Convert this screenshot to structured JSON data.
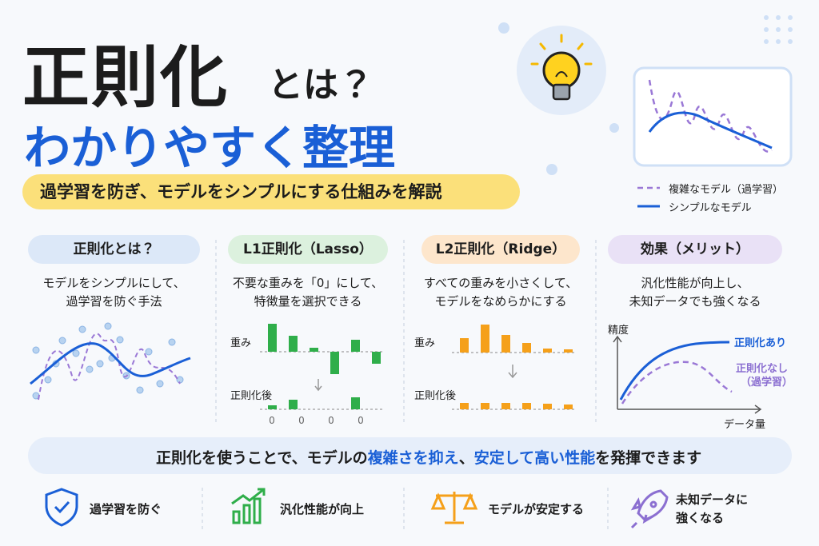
{
  "header": {
    "title_main": "正則化",
    "title_suffix": "とは？",
    "subtitle": "わかりやすく整理",
    "tagline": "過学習を防ぎ、モデルをシンプルにする仕組みを解説"
  },
  "legend": {
    "overfit": "複雑なモデル（過学習）",
    "simple": "シンプルなモデル"
  },
  "cards": [
    {
      "title": "正則化とは？",
      "desc": [
        "モデルをシンプルにして、",
        "過学習を防ぐ手法"
      ]
    },
    {
      "title": "L1正則化（Lasso）",
      "desc": [
        "不要な重みを「0」にして、",
        "特徴量を選択できる"
      ]
    },
    {
      "title": "L2正則化（Ridge）",
      "desc": [
        "すべての重みを小さくして、",
        "モデルをなめらかにする"
      ]
    },
    {
      "title": "効果（メリット）",
      "desc": [
        "汎化性能が向上し、",
        "未知データでも強くなる"
      ]
    }
  ],
  "l1": {
    "weight_label": "重み",
    "after_label": "正則化後",
    "before": [
      35,
      20,
      5,
      -28,
      15,
      -15
    ],
    "after": [
      5,
      12,
      0,
      0,
      15,
      0
    ],
    "zero_labels": [
      "0",
      "0",
      "0",
      "0"
    ]
  },
  "l2": {
    "weight_label": "重み",
    "after_label": "正則化後",
    "before": [
      18,
      35,
      22,
      12,
      5,
      4
    ],
    "after": [
      8,
      8,
      8,
      8,
      7,
      6
    ]
  },
  "effect": {
    "y_label": "精度",
    "x_label": "データ量",
    "with": "正則化あり",
    "without": [
      "正則化なし",
      "（過学習）"
    ]
  },
  "summary": {
    "parts": [
      "正則化を使うことで、モデルの",
      "複雑さを抑え",
      "、",
      "安定して高い性能",
      "を発揮できます"
    ]
  },
  "benefits": [
    "過学習を防ぐ",
    "汎化性能が向上",
    "モデルが安定する",
    [
      "未知データに",
      "強くなる"
    ]
  ]
}
